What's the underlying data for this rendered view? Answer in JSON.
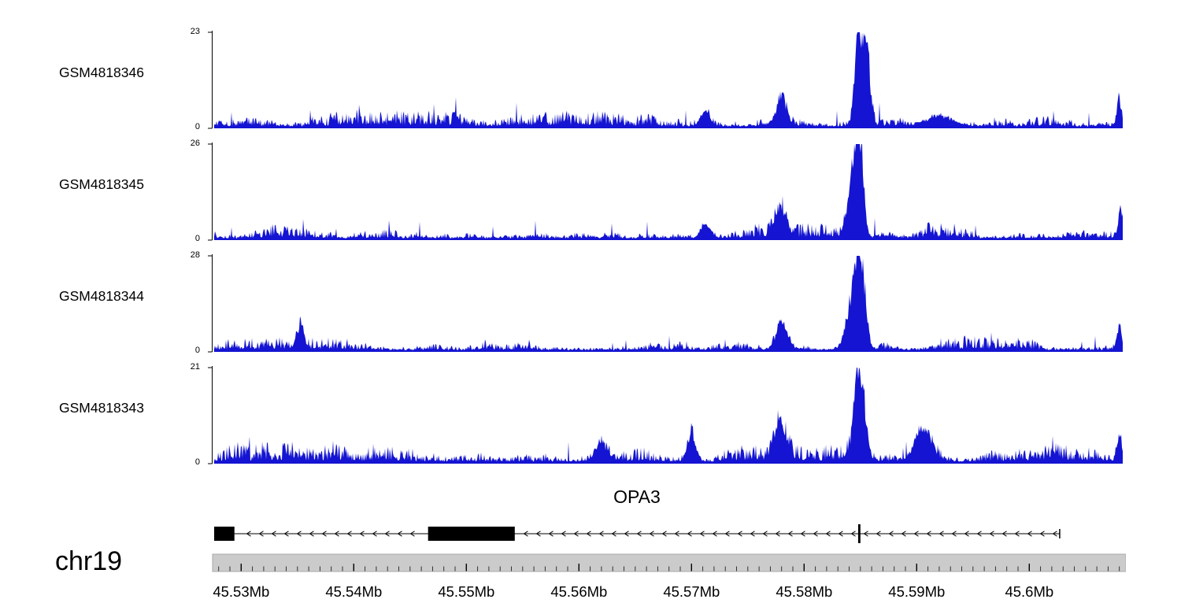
{
  "figure": {
    "background": "#ffffff",
    "signal_color": "#1414d2",
    "axis_bar_fill": "#cbcbcb",
    "axis_bar_stroke": "#a8a8a8"
  },
  "chart_data": {
    "type": "area",
    "title": "",
    "chromosome": "chr19",
    "x_axis": {
      "unit": "Mb",
      "range_mb": [
        45.5276,
        45.6083
      ],
      "major_ticks": [
        {
          "mb": 45.53,
          "label": "45.53Mb"
        },
        {
          "mb": 45.54,
          "label": "45.54Mb"
        },
        {
          "mb": 45.55,
          "label": "45.55Mb"
        },
        {
          "mb": 45.56,
          "label": "45.56Mb"
        },
        {
          "mb": 45.57,
          "label": "45.57Mb"
        },
        {
          "mb": 45.58,
          "label": "45.58Mb"
        },
        {
          "mb": 45.59,
          "label": "45.59Mb"
        },
        {
          "mb": 45.6,
          "label": "45.6Mb"
        }
      ],
      "minor_tick_interval_mb": 0.001
    },
    "tracks": [
      {
        "name": "GSM4818346",
        "ymax": 23,
        "ymin": 0,
        "seed": 20346,
        "noise": 0.085,
        "peaks": [
          {
            "mb": 45.5849,
            "h": 1.0,
            "w": 0.00035
          },
          {
            "mb": 45.5856,
            "h": 0.62,
            "w": 0.0003
          },
          {
            "mb": 45.578,
            "h": 0.3,
            "w": 0.00045
          },
          {
            "mb": 45.5712,
            "h": 0.14,
            "w": 0.0004
          },
          {
            "mb": 45.592,
            "h": 0.1,
            "w": 0.0012
          },
          {
            "mb": 45.608,
            "h": 0.28,
            "w": 0.0002
          }
        ]
      },
      {
        "name": "GSM4818345",
        "ymax": 26,
        "ymin": 0,
        "seed": 20345,
        "noise": 0.08,
        "peaks": [
          {
            "mb": 45.5849,
            "h": 1.0,
            "w": 0.00035
          },
          {
            "mb": 45.5843,
            "h": 0.55,
            "w": 0.00045
          },
          {
            "mb": 45.5779,
            "h": 0.3,
            "w": 0.0005
          },
          {
            "mb": 45.5712,
            "h": 0.12,
            "w": 0.0004
          },
          {
            "mb": 45.6081,
            "h": 0.26,
            "w": 0.0002
          }
        ]
      },
      {
        "name": "GSM4818344",
        "ymax": 28,
        "ymin": 0,
        "seed": 20344,
        "noise": 0.075,
        "peaks": [
          {
            "mb": 45.585,
            "h": 1.0,
            "w": 0.0004
          },
          {
            "mb": 45.5842,
            "h": 0.45,
            "w": 0.0005
          },
          {
            "mb": 45.578,
            "h": 0.28,
            "w": 0.0005
          },
          {
            "mb": 45.5352,
            "h": 0.22,
            "w": 0.0003
          },
          {
            "mb": 45.608,
            "h": 0.22,
            "w": 0.0002
          }
        ]
      },
      {
        "name": "GSM4818343",
        "ymax": 21,
        "ymin": 0,
        "seed": 20343,
        "noise": 0.1,
        "peaks": [
          {
            "mb": 45.5849,
            "h": 1.0,
            "w": 0.00045
          },
          {
            "mb": 45.5779,
            "h": 0.38,
            "w": 0.0005
          },
          {
            "mb": 45.5906,
            "h": 0.36,
            "w": 0.0007
          },
          {
            "mb": 45.57,
            "h": 0.3,
            "w": 0.00035
          },
          {
            "mb": 45.562,
            "h": 0.16,
            "w": 0.0006
          },
          {
            "mb": 45.608,
            "h": 0.24,
            "w": 0.0002
          }
        ]
      }
    ],
    "gene_track": {
      "gene": "OPA3",
      "strand": "-",
      "transcript_start_mb": 45.5276,
      "transcript_end_mb": 45.6027,
      "exons": [
        {
          "start_mb": 45.5276,
          "end_mb": 45.5294,
          "tall": false
        },
        {
          "start_mb": 45.5466,
          "end_mb": 45.5543,
          "tall": false
        },
        {
          "start_mb": 45.5848,
          "end_mb": 45.585,
          "tall": true
        }
      ]
    }
  }
}
